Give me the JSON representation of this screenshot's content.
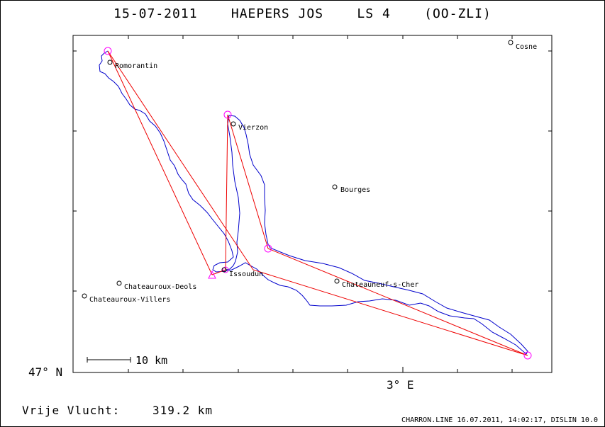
{
  "title": "15-07-2011    HAEPERS JOS    LS 4    (OO-ZLI)",
  "axis": {
    "lat_label": "47° N",
    "lon_label": "3° E"
  },
  "scale_bar": {
    "label": "10 km"
  },
  "distance": {
    "label": "Vrije Vlucht:",
    "value": "319.2 km"
  },
  "footer": "CHARRON.LINE 16.07.2011, 14:02:17, DISLIN 10.0",
  "colors": {
    "track": "#0000cc",
    "task": "#ee0000",
    "turnpoint": "#ff00ff",
    "frame": "#000000"
  },
  "places": [
    {
      "name": "Romorantin"
    },
    {
      "name": "Vierzon"
    },
    {
      "name": "Bourges"
    },
    {
      "name": "Issoudun"
    },
    {
      "name": "Chateauroux-Deols"
    },
    {
      "name": "Chateauroux-Villers"
    },
    {
      "name": "Chateauneuf-s-Cher"
    },
    {
      "name": "Cosne"
    }
  ]
}
